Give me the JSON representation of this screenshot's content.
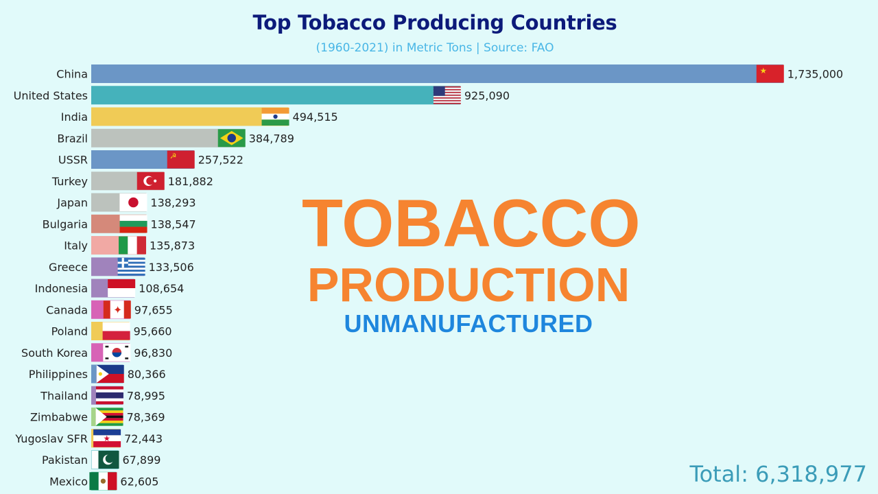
{
  "overlay": {
    "line1": "TOBACCO",
    "line2": "PRODUCTION",
    "line3": "UNMANUFACTURED"
  },
  "total": "Total: 6,318,977",
  "chart_data": {
    "type": "bar",
    "orientation": "horizontal",
    "title": "Top Tobacco Producing Countries",
    "subtitle": "(1960-2021) in Metric Tons | Source: FAO",
    "xlim": [
      0,
      1920000
    ],
    "grid": false,
    "categories": [
      "China",
      "United States",
      "India",
      "Brazil",
      "USSR",
      "Turkey",
      "Japan",
      "Bulgaria",
      "Italy",
      "Greece",
      "Indonesia",
      "Canada",
      "Poland",
      "South Korea",
      "Philippines",
      "Thailand",
      "Zimbabwe",
      "Yugoslav SFR",
      "Pakistan",
      "Mexico"
    ],
    "values": [
      1735000,
      925090,
      494515,
      384789,
      257522,
      181882,
      138293,
      138547,
      135873,
      133506,
      108654,
      97655,
      95660,
      96830,
      80366,
      78995,
      78369,
      72443,
      67899,
      62605
    ],
    "value_labels": [
      "1,735,000",
      "925,090",
      "494,515",
      "384,789",
      "257,522",
      "181,882",
      "138,293",
      "138,547",
      "135,873",
      "133,506",
      "108,654",
      "97,655",
      "95,660",
      "96,830",
      "80,366",
      "78,995",
      "78,369",
      "72,443",
      "67,899",
      "62,605"
    ],
    "colors": [
      "#6b96c6",
      "#45b2bb",
      "#f0cb56",
      "#bcc2bd",
      "#6b96c6",
      "#bcc2bd",
      "#bcc2bd",
      "#d5897a",
      "#f1a9a4",
      "#a083bc",
      "#a083bc",
      "#d763b6",
      "#f0cb56",
      "#d763b6",
      "#6b96c6",
      "#a083bc",
      "#a6d48a",
      "#f0cb56",
      "#45b2bb",
      "#55c6a0"
    ],
    "flags": [
      "china-flag-icon",
      "usa-flag-icon",
      "india-flag-icon",
      "brazil-flag-icon",
      "ussr-flag-icon",
      "turkey-flag-icon",
      "japan-flag-icon",
      "bulgaria-flag-icon",
      "italy-flag-icon",
      "greece-flag-icon",
      "indonesia-flag-icon",
      "canada-flag-icon",
      "poland-flag-icon",
      "south-korea-flag-icon",
      "philippines-flag-icon",
      "thailand-flag-icon",
      "zimbabwe-flag-icon",
      "yugoslavia-flag-icon",
      "pakistan-flag-icon",
      "mexico-flag-icon"
    ]
  }
}
